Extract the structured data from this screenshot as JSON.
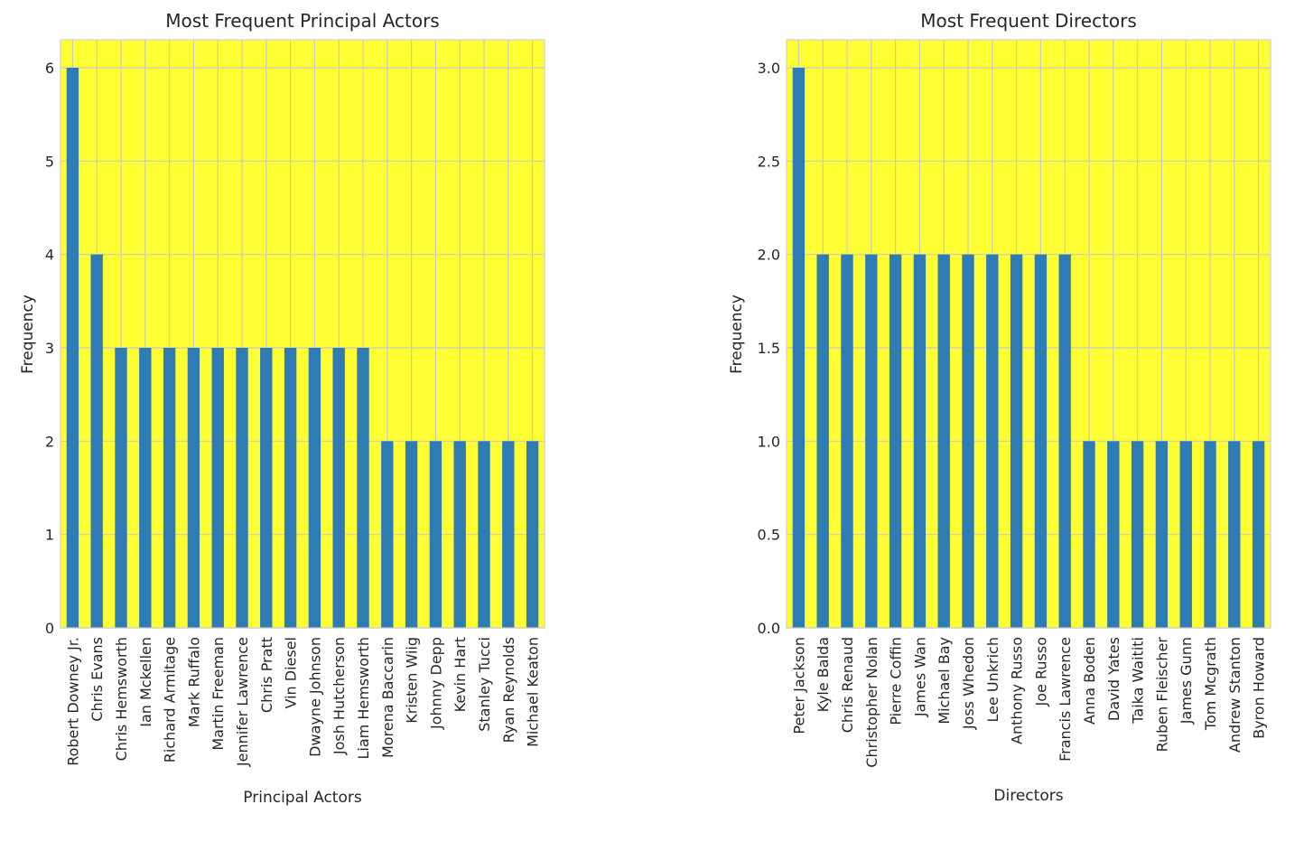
{
  "chart_data": [
    {
      "type": "bar",
      "title": "Most Frequent Principal Actors",
      "xlabel": "Principal Actors",
      "ylabel": "Frequency",
      "ylim": [
        0,
        6.3
      ],
      "yticks": [
        "0",
        "1",
        "2",
        "3",
        "4",
        "5",
        "6"
      ],
      "grid": true,
      "background_color": "#ffff33",
      "bar_color": "#2f7bb3",
      "categories": [
        "Robert Downey Jr.",
        "Chris Evans",
        "Chris Hemsworth",
        "Ian Mckellen",
        "Richard Armitage",
        "Mark Ruffalo",
        "Martin Freeman",
        "Jennifer Lawrence",
        "Chris Pratt",
        "Vin Diesel",
        "Dwayne Johnson",
        "Josh Hutcherson",
        "Liam Hemsworth",
        "Morena Baccarin",
        "Kristen Wiig",
        "Johnny Depp",
        "Kevin Hart",
        "Stanley Tucci",
        "Ryan Reynolds",
        "Michael Keaton"
      ],
      "values": [
        6,
        4,
        3,
        3,
        3,
        3,
        3,
        3,
        3,
        3,
        3,
        3,
        3,
        2,
        2,
        2,
        2,
        2,
        2,
        2
      ]
    },
    {
      "type": "bar",
      "title": "Most Frequent Directors",
      "xlabel": "Directors",
      "ylabel": "Frequency",
      "ylim": [
        0,
        3.15
      ],
      "yticks": [
        "0.0",
        "0.5",
        "1.0",
        "1.5",
        "2.0",
        "2.5",
        "3.0"
      ],
      "grid": true,
      "background_color": "#ffff33",
      "bar_color": "#2f7bb3",
      "categories": [
        "Peter Jackson",
        "Kyle Balda",
        "Chris Renaud",
        "Christopher Nolan",
        "Pierre Coffin",
        "James Wan",
        "Michael Bay",
        "Joss Whedon",
        "Lee Unkrich",
        "Anthony Russo",
        "Joe Russo",
        "Francis Lawrence",
        "Anna Boden",
        "David Yates",
        "Taika Waititi",
        "Ruben Fleischer",
        "James Gunn",
        "Tom Mcgrath",
        "Andrew Stanton",
        "Byron Howard"
      ],
      "values": [
        3,
        2,
        2,
        2,
        2,
        2,
        2,
        2,
        2,
        2,
        2,
        2,
        1,
        1,
        1,
        1,
        1,
        1,
        1,
        1
      ]
    }
  ]
}
